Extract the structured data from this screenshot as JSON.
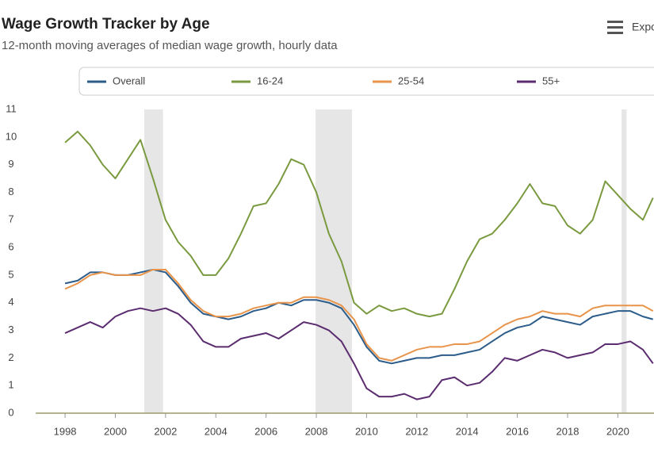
{
  "chart_data": {
    "type": "line",
    "title": "Wage Growth Tracker by Age",
    "subtitle": "12-month moving averages of median wage growth, hourly data",
    "export_label": "Export",
    "x": [
      1998,
      1998.5,
      1999,
      1999.5,
      2000,
      2000.5,
      2001,
      2001.5,
      2002,
      2002.5,
      2003,
      2003.5,
      2004,
      2004.5,
      2005,
      2005.5,
      2006,
      2006.5,
      2007,
      2007.5,
      2008,
      2008.5,
      2009,
      2009.5,
      2010,
      2010.5,
      2011,
      2011.5,
      2012,
      2012.5,
      2013,
      2013.5,
      2014,
      2014.5,
      2015,
      2015.5,
      2016,
      2016.5,
      2017,
      2017.5,
      2018,
      2018.5,
      2019,
      2019.5,
      2020,
      2020.5,
      2021,
      2021.4
    ],
    "series": [
      {
        "name": "Overall",
        "color": "#2b5c8a",
        "values": [
          4.7,
          4.8,
          5.1,
          5.1,
          5.0,
          5.0,
          5.1,
          5.2,
          5.1,
          4.6,
          4.0,
          3.6,
          3.5,
          3.4,
          3.5,
          3.7,
          3.8,
          4.0,
          3.9,
          4.1,
          4.1,
          4.0,
          3.8,
          3.2,
          2.4,
          1.9,
          1.8,
          1.9,
          2.0,
          2.0,
          2.1,
          2.1,
          2.2,
          2.3,
          2.6,
          2.9,
          3.1,
          3.2,
          3.5,
          3.4,
          3.3,
          3.2,
          3.5,
          3.6,
          3.7,
          3.7,
          3.5,
          3.4
        ]
      },
      {
        "name": "16-24",
        "color": "#7a9a40",
        "values": [
          9.8,
          10.2,
          9.7,
          9.0,
          8.5,
          9.2,
          9.9,
          8.5,
          7.0,
          6.2,
          5.7,
          5.0,
          5.0,
          5.6,
          6.5,
          7.5,
          7.6,
          8.3,
          9.2,
          9.0,
          8.0,
          6.5,
          5.5,
          4.0,
          3.6,
          3.9,
          3.7,
          3.8,
          3.6,
          3.5,
          3.6,
          4.5,
          5.5,
          6.3,
          6.5,
          7.0,
          7.6,
          8.3,
          7.6,
          7.5,
          6.8,
          6.5,
          7.0,
          8.4,
          7.9,
          7.4,
          7.0,
          7.8
        ]
      },
      {
        "name": "25-54",
        "color": "#e8944a",
        "values": [
          4.5,
          4.7,
          5.0,
          5.1,
          5.0,
          5.0,
          5.0,
          5.2,
          5.2,
          4.7,
          4.1,
          3.7,
          3.5,
          3.5,
          3.6,
          3.8,
          3.9,
          4.0,
          4.0,
          4.2,
          4.2,
          4.1,
          3.9,
          3.4,
          2.5,
          2.0,
          1.9,
          2.1,
          2.3,
          2.4,
          2.4,
          2.5,
          2.5,
          2.6,
          2.9,
          3.2,
          3.4,
          3.5,
          3.7,
          3.6,
          3.6,
          3.5,
          3.8,
          3.9,
          3.9,
          3.9,
          3.9,
          3.7
        ]
      },
      {
        "name": "55+",
        "color": "#5b2c6f",
        "values": [
          2.9,
          3.1,
          3.3,
          3.1,
          3.5,
          3.7,
          3.8,
          3.7,
          3.8,
          3.6,
          3.2,
          2.6,
          2.4,
          2.4,
          2.7,
          2.8,
          2.9,
          2.7,
          3.0,
          3.3,
          3.2,
          3.0,
          2.6,
          1.8,
          0.9,
          0.6,
          0.6,
          0.7,
          0.5,
          0.6,
          1.2,
          1.3,
          1.0,
          1.1,
          1.5,
          2.0,
          1.9,
          2.1,
          2.3,
          2.2,
          2.0,
          2.1,
          2.2,
          2.5,
          2.5,
          2.6,
          2.3,
          1.8
        ]
      }
    ],
    "shaded_periods": [
      [
        2001.15,
        2001.9
      ],
      [
        2007.97,
        2009.42
      ],
      [
        2020.15,
        2020.35
      ]
    ],
    "shade_color": "#e6e6e6",
    "xlim": [
      1996.83,
      2021.44
    ],
    "ylim": [
      0,
      11
    ],
    "xticks": [
      1998,
      2000,
      2002,
      2004,
      2006,
      2008,
      2010,
      2012,
      2014,
      2016,
      2018,
      2020
    ],
    "yticks": [
      0,
      1,
      2,
      3,
      4,
      5,
      6,
      7,
      8,
      9,
      10,
      11
    ],
    "legend": "top"
  }
}
